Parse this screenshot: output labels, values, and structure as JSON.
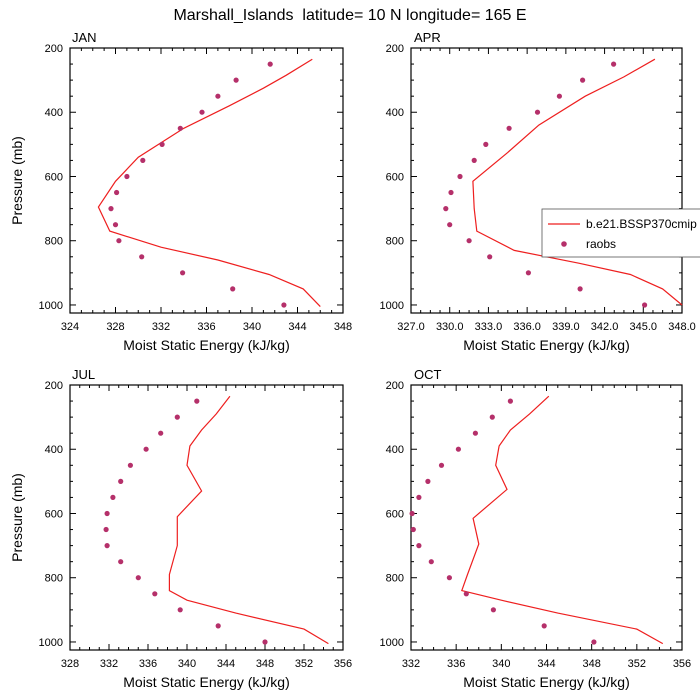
{
  "page_title": "Marshall_Islands  latitude= 10 N longitude= 165 E",
  "colors": {
    "model_line": "#ee1f1f",
    "obs_marker": "#b5306a",
    "axis": "#000000"
  },
  "legend": {
    "model_label": "b.e21.BSSP370cmip",
    "obs_label": "raobs"
  },
  "chart_data": [
    {
      "type": "line",
      "panel_label": "JAN",
      "xlabel": "Moist Static Energy (kJ/kg)",
      "ylabel": "Pressure (mb)",
      "xlim": [
        324,
        348
      ],
      "ylim": [
        200,
        1025
      ],
      "y_reversed": true,
      "xticks": [
        324,
        328,
        332,
        336,
        340,
        344,
        348
      ],
      "xtick_labels": [
        "324",
        "328",
        "332",
        "336",
        "340",
        "344",
        "348"
      ],
      "yticks": [
        200,
        400,
        600,
        800,
        1000
      ],
      "ytick_labels": [
        "200",
        "400",
        "600",
        "800",
        "1000"
      ],
      "series": [
        {
          "name": "b.e21.BSSP370cmip",
          "kind": "line",
          "x": [
            345.3,
            343.0,
            341.0,
            338.0,
            334.0,
            330.0,
            328.0,
            326.5,
            327.5,
            332.0,
            337.0,
            341.5,
            344.5,
            346.0
          ],
          "y": [
            235,
            285,
            325,
            380,
            450,
            540,
            615,
            695,
            770,
            820,
            860,
            905,
            950,
            1005
          ]
        },
        {
          "name": "raobs",
          "kind": "scatter",
          "x": [
            341.6,
            338.6,
            337.0,
            335.6,
            333.7,
            332.1,
            330.4,
            329.0,
            328.1,
            327.6,
            328.0,
            328.3,
            330.3,
            333.9,
            338.3,
            342.8
          ],
          "y": [
            250,
            300,
            350,
            400,
            450,
            500,
            550,
            600,
            650,
            700,
            750,
            800,
            850,
            900,
            950,
            1000
          ]
        }
      ]
    },
    {
      "type": "line",
      "panel_label": "APR",
      "xlabel": "Moist Static Energy (kJ/kg)",
      "ylabel": "",
      "xlim": [
        327,
        348
      ],
      "ylim": [
        200,
        1025
      ],
      "y_reversed": true,
      "xticks": [
        327,
        330,
        333,
        336,
        339,
        342,
        345,
        348
      ],
      "xtick_labels": [
        "327.0",
        "330.0",
        "333.0",
        "336.0",
        "339.0",
        "342.0",
        "345.0",
        "348.0"
      ],
      "yticks": [
        200,
        400,
        600,
        800,
        1000
      ],
      "ytick_labels": [
        "200",
        "400",
        "600",
        "800",
        "1000"
      ],
      "series": [
        {
          "name": "b.e21.BSSP370cmip",
          "kind": "line",
          "x": [
            345.9,
            343.5,
            340.5,
            336.9,
            334.5,
            331.8,
            331.9,
            332.1,
            335.0,
            340.0,
            344.0,
            346.5,
            348.0
          ],
          "y": [
            235,
            290,
            350,
            440,
            525,
            615,
            700,
            770,
            830,
            870,
            905,
            950,
            1000
          ]
        },
        {
          "name": "raobs",
          "kind": "scatter",
          "x": [
            342.7,
            340.3,
            338.5,
            336.8,
            334.6,
            332.8,
            331.9,
            330.8,
            330.1,
            329.7,
            330.0,
            331.5,
            333.1,
            336.1,
            340.1,
            345.1
          ],
          "y": [
            250,
            300,
            350,
            400,
            450,
            500,
            550,
            600,
            650,
            700,
            750,
            800,
            850,
            900,
            950,
            1000
          ]
        }
      ],
      "legend_box": true
    },
    {
      "type": "line",
      "panel_label": "JUL",
      "xlabel": "Moist Static Energy (kJ/kg)",
      "ylabel": "Pressure (mb)",
      "xlim": [
        328,
        356
      ],
      "ylim": [
        200,
        1025
      ],
      "y_reversed": true,
      "xticks": [
        328,
        332,
        336,
        340,
        344,
        348,
        352,
        356
      ],
      "xtick_labels": [
        "328",
        "332",
        "336",
        "340",
        "344",
        "348",
        "352",
        "356"
      ],
      "yticks": [
        200,
        400,
        600,
        800,
        1000
      ],
      "ytick_labels": [
        "200",
        "400",
        "600",
        "800",
        "1000"
      ],
      "series": [
        {
          "name": "b.e21.BSSP370cmip",
          "kind": "line",
          "x": [
            344.4,
            343.0,
            341.5,
            340.3,
            340.0,
            341.5,
            339.0,
            339.0,
            338.2,
            338.2,
            340.0,
            345.0,
            352.0,
            354.5
          ],
          "y": [
            235,
            290,
            340,
            390,
            450,
            530,
            610,
            700,
            790,
            840,
            870,
            910,
            960,
            1005
          ]
        },
        {
          "name": "raobs",
          "kind": "scatter",
          "x": [
            341.0,
            339.0,
            337.3,
            335.8,
            334.2,
            333.2,
            332.4,
            331.8,
            331.7,
            331.8,
            333.2,
            335.0,
            336.7,
            339.3,
            343.2,
            348.0
          ],
          "y": [
            250,
            300,
            350,
            400,
            450,
            500,
            550,
            600,
            650,
            700,
            750,
            800,
            850,
            900,
            950,
            1000
          ]
        }
      ]
    },
    {
      "type": "line",
      "panel_label": "OCT",
      "xlabel": "Moist Static Energy (kJ/kg)",
      "ylabel": "",
      "xlim": [
        332,
        356
      ],
      "ylim": [
        200,
        1025
      ],
      "y_reversed": true,
      "xticks": [
        332,
        336,
        340,
        344,
        348,
        352,
        356
      ],
      "xtick_labels": [
        "332",
        "336",
        "340",
        "344",
        "348",
        "352",
        "356"
      ],
      "yticks": [
        200,
        400,
        600,
        800,
        1000
      ],
      "ytick_labels": [
        "200",
        "400",
        "600",
        "800",
        "1000"
      ],
      "series": [
        {
          "name": "b.e21.BSSP370cmip",
          "kind": "line",
          "x": [
            344.2,
            342.5,
            340.8,
            339.8,
            339.5,
            340.5,
            337.5,
            338.0,
            337.0,
            336.5,
            340.0,
            345.0,
            352.0,
            354.3
          ],
          "y": [
            235,
            290,
            340,
            390,
            450,
            525,
            615,
            695,
            790,
            840,
            870,
            910,
            960,
            1005
          ]
        },
        {
          "name": "raobs",
          "kind": "scatter",
          "x": [
            340.8,
            339.2,
            337.7,
            336.2,
            334.7,
            333.5,
            332.7,
            332.1,
            332.2,
            332.7,
            333.8,
            335.4,
            336.9,
            339.3,
            343.8,
            348.2
          ],
          "y": [
            250,
            300,
            350,
            400,
            450,
            500,
            550,
            600,
            650,
            700,
            750,
            800,
            850,
            900,
            950,
            1000
          ]
        }
      ]
    }
  ]
}
